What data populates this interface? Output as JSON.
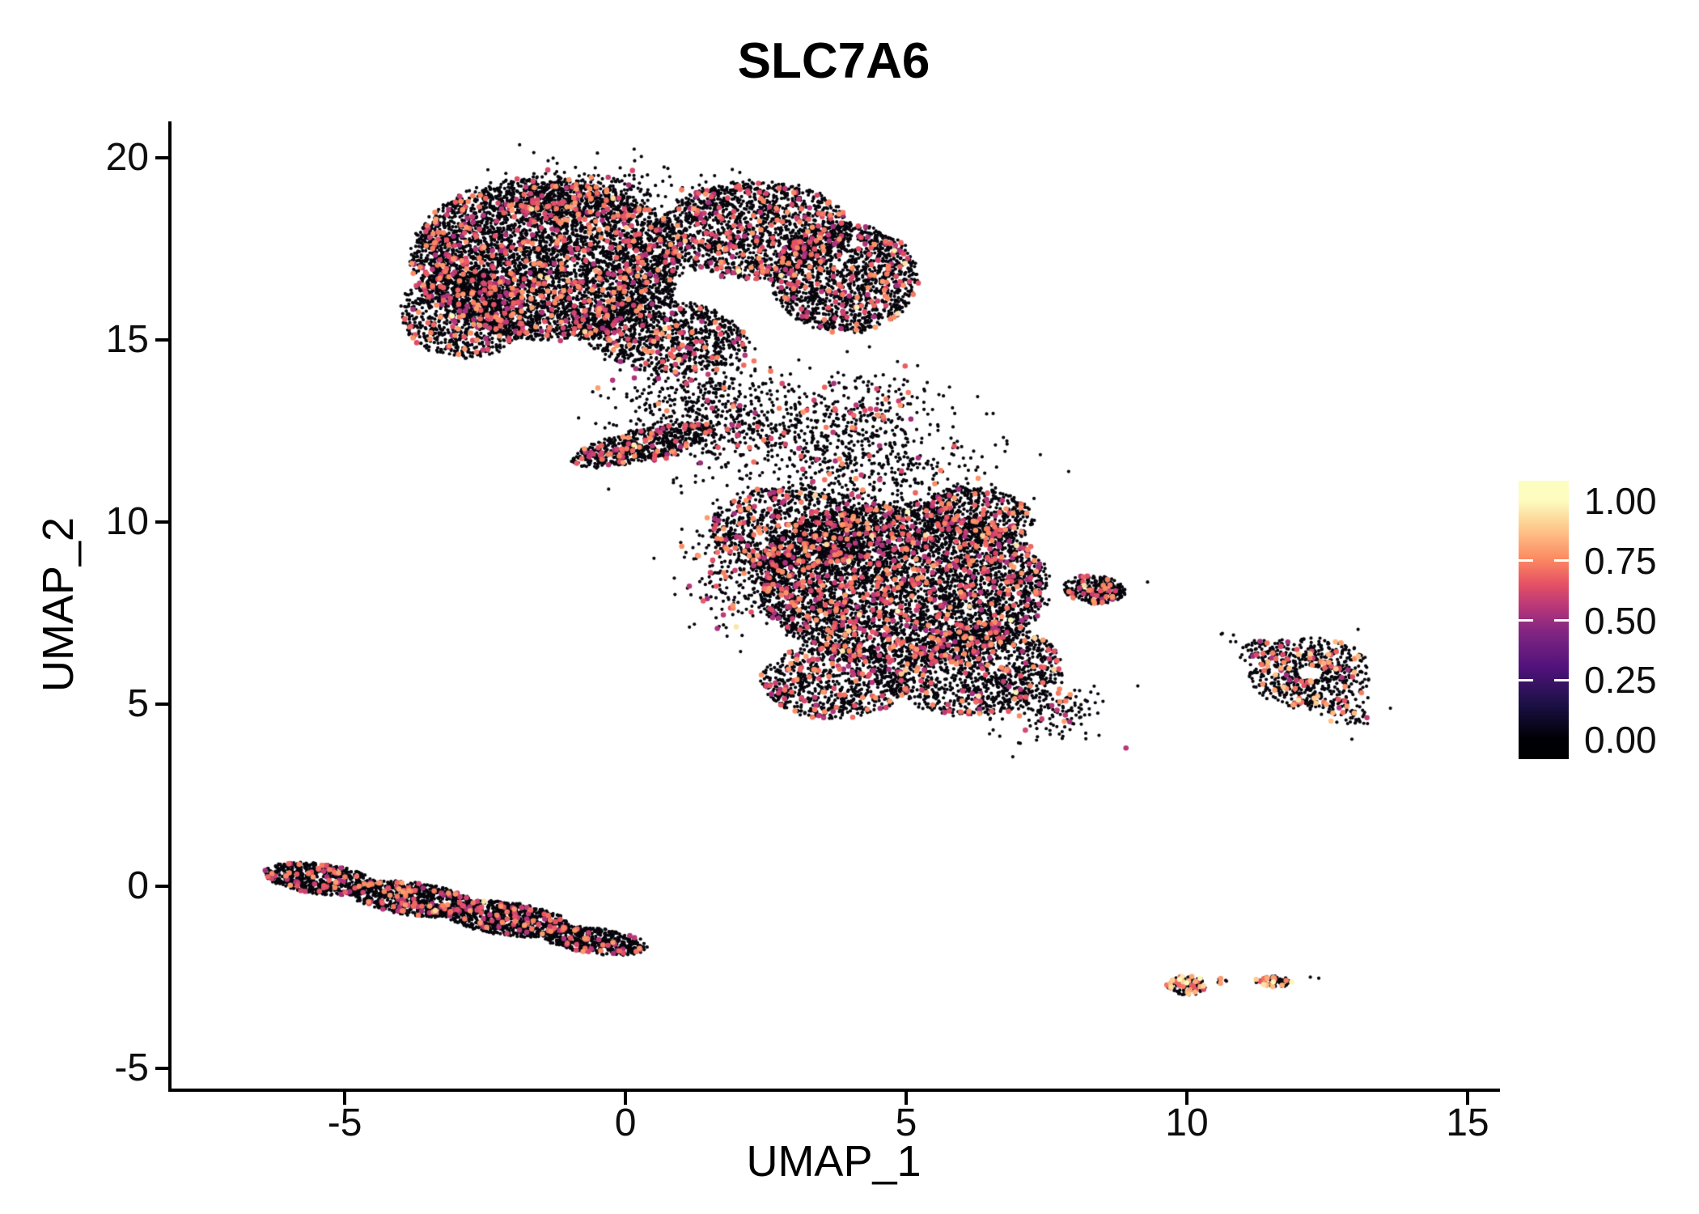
{
  "chart_data": {
    "type": "scatter",
    "title": "SLC7A6",
    "xlabel": "UMAP_1",
    "ylabel": "UMAP_2",
    "xlim": [
      -8.1,
      15.52
    ],
    "ylim": [
      -5.56,
      21.0
    ],
    "xticks": [
      -5,
      0,
      5,
      10,
      15
    ],
    "yticks": [
      -5,
      0,
      5,
      10,
      15,
      20
    ],
    "grid": false,
    "legend_position": "right",
    "point_color_zero": "#08060d",
    "background": "#ffffff",
    "colormap": {
      "name": "magma",
      "stops": [
        {
          "v": 0.0,
          "color": "#000004"
        },
        {
          "v": 0.15,
          "color": "#1d1147"
        },
        {
          "v": 0.3,
          "color": "#51127c"
        },
        {
          "v": 0.45,
          "color": "#822681"
        },
        {
          "v": 0.55,
          "color": "#b63679"
        },
        {
          "v": 0.65,
          "color": "#e65164"
        },
        {
          "v": 0.75,
          "color": "#fb8861"
        },
        {
          "v": 0.87,
          "color": "#fec287"
        },
        {
          "v": 1.0,
          "color": "#fcfdbf"
        }
      ]
    },
    "legend": {
      "tick_labels": [
        "1.00",
        "0.75",
        "0.50",
        "0.25",
        "0.00"
      ],
      "tick_values": [
        1.0,
        0.75,
        0.5,
        0.25,
        0.0
      ]
    },
    "clusters": [
      {
        "name": "top-blob",
        "blobs": [
          {
            "shape": "disk",
            "cx": -1.4,
            "cy": 17.2,
            "rx": 2.4,
            "ry": 2.2,
            "rot": -8,
            "n": 5200,
            "pos_frac": 0.1,
            "v_range": [
              0.5,
              0.8
            ]
          },
          {
            "shape": "disk",
            "cx": -2.9,
            "cy": 15.7,
            "rx": 1.1,
            "ry": 1.2,
            "rot": 15,
            "n": 800,
            "pos_frac": 0.09,
            "v_range": [
              0.5,
              0.8
            ]
          },
          {
            "shape": "disk",
            "cx": 2.3,
            "cy": 18.0,
            "rx": 1.7,
            "ry": 1.35,
            "rot": 0,
            "n": 1600,
            "pos_frac": 0.1,
            "v_range": [
              0.5,
              0.8
            ]
          },
          {
            "shape": "disk",
            "cx": 3.9,
            "cy": 16.7,
            "rx": 1.3,
            "ry": 1.5,
            "rot": 0,
            "n": 1500,
            "pos_frac": 0.1,
            "v_range": [
              0.5,
              0.8
            ]
          },
          {
            "shape": "disk",
            "cx": 0.7,
            "cy": 15.1,
            "rx": 1.5,
            "ry": 1.0,
            "rot": -15,
            "n": 1000,
            "pos_frac": 0.09,
            "v_range": [
              0.5,
              0.8
            ]
          },
          {
            "shape": "gauss",
            "cx": -0.6,
            "cy": 19.0,
            "rx": 0.9,
            "ry": 0.45,
            "rot": 0,
            "n": 260,
            "pos_frac": 0.08,
            "v_range": [
              0.5,
              0.8
            ]
          },
          {
            "shape": "gauss",
            "cx": 1.4,
            "cy": 13.2,
            "rx": 0.8,
            "ry": 0.7,
            "rot": 0,
            "n": 480,
            "pos_frac": 0.07,
            "v_range": [
              0.5,
              0.8
            ]
          },
          {
            "shape": "disk",
            "cx": 0.3,
            "cy": 12.1,
            "rx": 1.35,
            "ry": 0.42,
            "rot": 20,
            "n": 620,
            "pos_frac": 0.1,
            "v_range": [
              0.5,
              0.8
            ]
          },
          {
            "shape": "gauss",
            "cx": 2.9,
            "cy": 12.4,
            "rx": 1.1,
            "ry": 0.8,
            "rot": 0,
            "n": 360,
            "pos_frac": 0.08,
            "v_range": [
              0.5,
              0.8
            ]
          },
          {
            "shape": "gauss",
            "cx": 4.4,
            "cy": 13.1,
            "rx": 0.6,
            "ry": 0.5,
            "rot": 0,
            "n": 150,
            "pos_frac": 0.08,
            "v_range": [
              0.5,
              0.8
            ]
          }
        ]
      },
      {
        "name": "middle-blob",
        "blobs": [
          {
            "shape": "disk",
            "cx": 4.9,
            "cy": 8.3,
            "rx": 2.6,
            "ry": 2.2,
            "rot": -5,
            "n": 5200,
            "pos_frac": 0.1,
            "v_range": [
              0.5,
              0.8
            ]
          },
          {
            "shape": "disk",
            "cx": 3.0,
            "cy": 9.8,
            "rx": 1.5,
            "ry": 1.2,
            "rot": 0,
            "n": 900,
            "pos_frac": 0.1,
            "v_range": [
              0.5,
              0.8
            ]
          },
          {
            "shape": "disk",
            "cx": 6.3,
            "cy": 5.9,
            "rx": 1.5,
            "ry": 1.2,
            "rot": 15,
            "n": 1100,
            "pos_frac": 0.1,
            "v_range": [
              0.5,
              0.8
            ]
          },
          {
            "shape": "disk",
            "cx": 3.7,
            "cy": 5.6,
            "rx": 1.3,
            "ry": 1.0,
            "rot": 0,
            "n": 800,
            "pos_frac": 0.1,
            "v_range": [
              0.5,
              0.8
            ]
          },
          {
            "shape": "disk",
            "cx": 8.35,
            "cy": 8.15,
            "rx": 0.55,
            "ry": 0.4,
            "rot": -10,
            "n": 260,
            "pos_frac": 0.12,
            "v_range": [
              0.5,
              0.8
            ]
          },
          {
            "shape": "gauss",
            "cx": 4.4,
            "cy": 11.4,
            "rx": 1.0,
            "ry": 0.7,
            "rot": 0,
            "n": 420,
            "pos_frac": 0.08,
            "v_range": [
              0.5,
              0.8
            ]
          },
          {
            "shape": "disk",
            "cx": 6.3,
            "cy": 10.2,
            "rx": 1.0,
            "ry": 0.75,
            "rot": -20,
            "n": 500,
            "pos_frac": 0.1,
            "v_range": [
              0.5,
              0.8
            ]
          },
          {
            "shape": "gauss",
            "cx": 2.1,
            "cy": 8.8,
            "rx": 0.55,
            "ry": 0.9,
            "rot": 0,
            "n": 300,
            "pos_frac": 0.1,
            "v_range": [
              0.5,
              0.8
            ]
          },
          {
            "shape": "gauss",
            "cx": 7.6,
            "cy": 4.9,
            "rx": 0.5,
            "ry": 0.4,
            "rot": 0,
            "n": 160,
            "pos_frac": 0.1,
            "v_range": [
              0.5,
              0.8
            ]
          }
        ]
      },
      {
        "name": "lower-left-band",
        "blobs": [
          {
            "shape": "disk",
            "cx": -5.45,
            "cy": 0.2,
            "rx": 1.0,
            "ry": 0.42,
            "rot": -12,
            "n": 650,
            "pos_frac": 0.08,
            "v_range": [
              0.5,
              0.8
            ]
          },
          {
            "shape": "disk",
            "cx": -3.8,
            "cy": -0.35,
            "rx": 1.15,
            "ry": 0.45,
            "rot": -12,
            "n": 800,
            "pos_frac": 0.08,
            "v_range": [
              0.5,
              0.8
            ]
          },
          {
            "shape": "disk",
            "cx": -2.1,
            "cy": -0.9,
            "rx": 1.15,
            "ry": 0.45,
            "rot": -12,
            "n": 800,
            "pos_frac": 0.08,
            "v_range": [
              0.5,
              0.8
            ]
          },
          {
            "shape": "disk",
            "cx": -0.55,
            "cy": -1.5,
            "rx": 0.95,
            "ry": 0.35,
            "rot": -12,
            "n": 550,
            "pos_frac": 0.08,
            "v_range": [
              0.5,
              0.8
            ]
          }
        ]
      },
      {
        "name": "right-ring",
        "blobs": [
          {
            "shape": "ring",
            "cx": 12.2,
            "cy": 5.85,
            "rx": 0.6,
            "ry": 0.4,
            "stretch_x": 1.1,
            "rot": 0,
            "n": 620,
            "pos_frac": 0.11,
            "v_range": [
              0.5,
              0.9
            ]
          },
          {
            "shape": "gauss",
            "cx": 11.35,
            "cy": 6.5,
            "rx": 0.25,
            "ry": 0.18,
            "rot": -20,
            "n": 80,
            "pos_frac": 0.12,
            "v_range": [
              0.5,
              0.9
            ]
          },
          {
            "shape": "gauss",
            "cx": 12.85,
            "cy": 4.75,
            "rx": 0.2,
            "ry": 0.25,
            "rot": 0,
            "n": 60,
            "pos_frac": 0.1,
            "v_range": [
              0.5,
              0.9
            ]
          }
        ]
      },
      {
        "name": "bottom-right-islands",
        "blobs": [
          {
            "shape": "disk",
            "cx": 10.0,
            "cy": -2.72,
            "rx": 0.35,
            "ry": 0.27,
            "rot": 0,
            "n": 130,
            "pos_frac": 0.3,
            "v_range": [
              0.55,
              1.0
            ]
          },
          {
            "shape": "disk",
            "cx": 11.55,
            "cy": -2.62,
            "rx": 0.35,
            "ry": 0.15,
            "rot": -8,
            "n": 85,
            "pos_frac": 0.25,
            "v_range": [
              0.55,
              1.0
            ]
          },
          {
            "shape": "gauss",
            "cx": 10.62,
            "cy": -2.58,
            "rx": 0.06,
            "ry": 0.05,
            "rot": 0,
            "n": 6,
            "pos_frac": 0.2,
            "v_range": [
              0.6,
              0.9
            ]
          }
        ]
      }
    ],
    "stray_points": [
      [
        6.9,
        3.55
      ],
      [
        9.3,
        8.35
      ],
      [
        12.2,
        -2.5
      ],
      [
        12.35,
        -2.53
      ],
      [
        1.0,
        10.8
      ],
      [
        2.1,
        10.5
      ],
      [
        -0.3,
        10.9
      ],
      [
        5.8,
        12.3
      ],
      [
        0.2,
        13.4
      ],
      [
        13.05,
        7.05
      ],
      [
        11.0,
        6.55
      ],
      [
        2.4,
        10.6
      ]
    ]
  }
}
